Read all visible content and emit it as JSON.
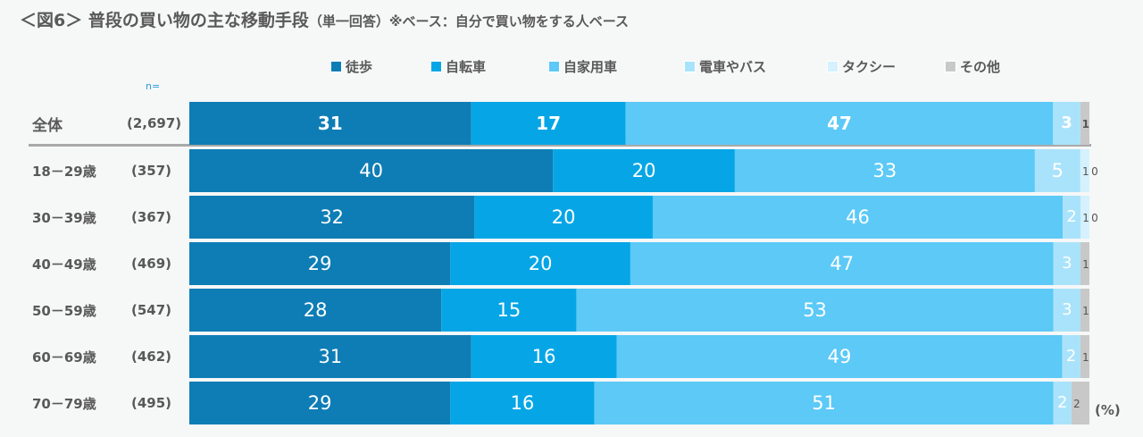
{
  "title": "＜図6＞ 普段の買い物の主な移動手段",
  "title_note": "（単一回答）",
  "base_note": "※ベース：自分で買い物をする人ベース",
  "n_label": "n=",
  "unit_label": "(%)",
  "colors": {
    "徒歩": "#0e7db5",
    "自転車": "#06a6e6",
    "自家用車": "#5cc9f7",
    "電車やバス": "#a9e3fb",
    "タクシー": "#d4f1fd",
    "その他": "#c8c8c8"
  },
  "chart_data": {
    "type": "bar",
    "orientation": "horizontal-stacked-100",
    "title": "＜図6＞ 普段の買い物の主な移動手段（単一回答）",
    "series_names": [
      "徒歩",
      "自転車",
      "自家用車",
      "電車やバス",
      "タクシー",
      "その他"
    ],
    "categories": [
      "全体",
      "18－29歳",
      "30－39歳",
      "40－49歳",
      "50－59歳",
      "60－69歳",
      "70－79歳"
    ],
    "n": [
      "(2,697)",
      "(357)",
      "(367)",
      "(469)",
      "(547)",
      "(462)",
      "(495)"
    ],
    "series": [
      {
        "name": "徒歩",
        "values": [
          31,
          40,
          32,
          29,
          28,
          31,
          29
        ]
      },
      {
        "name": "自転車",
        "values": [
          17,
          20,
          20,
          20,
          15,
          16,
          16
        ]
      },
      {
        "name": "自家用車",
        "values": [
          47,
          33,
          46,
          47,
          53,
          49,
          51
        ]
      },
      {
        "name": "電車やバス",
        "values": [
          3,
          5,
          2,
          3,
          3,
          2,
          2
        ]
      },
      {
        "name": "タクシー",
        "values": [
          0,
          1,
          1,
          0,
          0,
          0,
          null
        ]
      },
      {
        "name": "その他",
        "values": [
          1,
          0,
          0,
          1,
          1,
          1,
          2
        ]
      }
    ],
    "xlim": [
      0,
      100
    ],
    "legend_position": "top"
  }
}
